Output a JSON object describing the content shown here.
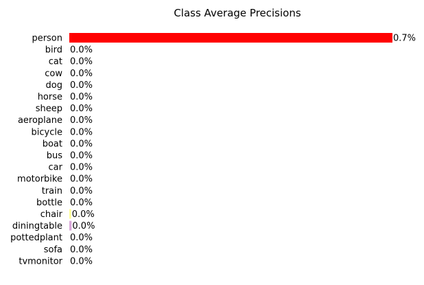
{
  "chart_data": {
    "type": "bar",
    "orientation": "horizontal",
    "title": "Class Average Precisions",
    "xlabel": "",
    "ylabel": "",
    "xlim": [
      0,
      0.7
    ],
    "grid": false,
    "categories": [
      "person",
      "bird",
      "cat",
      "cow",
      "dog",
      "horse",
      "sheep",
      "aeroplane",
      "bicycle",
      "boat",
      "bus",
      "car",
      "motorbike",
      "train",
      "bottle",
      "chair",
      "diningtable",
      "pottedplant",
      "sofa",
      "tvmonitor"
    ],
    "values": [
      0.7,
      0.0,
      0.0,
      0.0,
      0.0,
      0.0,
      0.0,
      0.0,
      0.0,
      0.0,
      0.0,
      0.0,
      0.0,
      0.0,
      0.0,
      0.004,
      0.005,
      0.0,
      0.0,
      0.0
    ],
    "value_labels": [
      "0.7%",
      "0.0%",
      "0.0%",
      "0.0%",
      "0.0%",
      "0.0%",
      "0.0%",
      "0.0%",
      "0.0%",
      "0.0%",
      "0.0%",
      "0.0%",
      "0.0%",
      "0.0%",
      "0.0%",
      "0.0%",
      "0.0%",
      "0.0%",
      "0.0%",
      "0.0%"
    ],
    "colors": [
      "#ff0000",
      "#ff0000",
      "#ff0000",
      "#ff0000",
      "#ff0000",
      "#ff0000",
      "#ff0000",
      "#ff0000",
      "#ff0000",
      "#ff0000",
      "#ff0000",
      "#ff0000",
      "#ff0000",
      "#ff0000",
      "#ff0000",
      "#ffff99",
      "#d8a8d8",
      "#ff0000",
      "#ff0000",
      "#ff0000"
    ]
  }
}
